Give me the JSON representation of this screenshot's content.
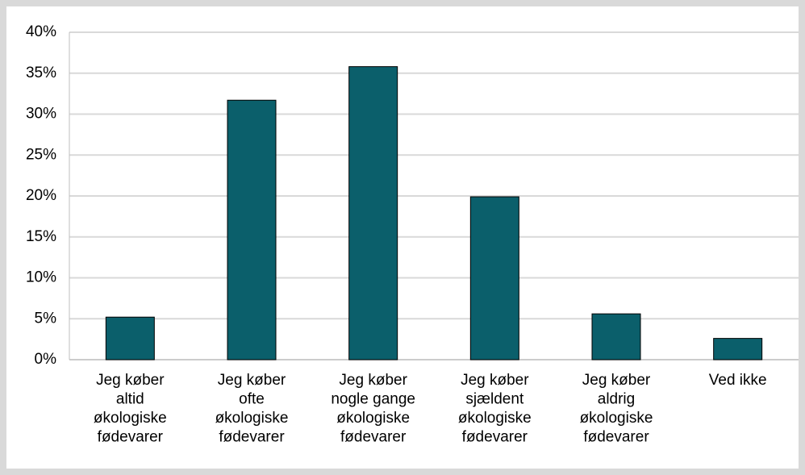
{
  "chart_data": {
    "type": "bar",
    "categories": [
      [
        "Jeg køber",
        "altid",
        "økologiske",
        "fødevarer"
      ],
      [
        "Jeg køber",
        "ofte",
        "økologiske",
        "fødevarer"
      ],
      [
        "Jeg køber",
        "nogle gange",
        "økologiske",
        "fødevarer"
      ],
      [
        "Jeg køber",
        "sjældent",
        "økologiske",
        "fødevarer"
      ],
      [
        "Jeg køber",
        "aldrig",
        "økologiske",
        "fødevarer"
      ],
      [
        "Ved ikke"
      ]
    ],
    "values": [
      5.2,
      31.7,
      35.8,
      19.9,
      5.6,
      2.6
    ],
    "color": "#0b5f6b",
    "ylim": [
      0,
      40
    ],
    "yticks": [
      {
        "value": 0,
        "label": "0%"
      },
      {
        "value": 5,
        "label": "5%"
      },
      {
        "value": 10,
        "label": "10%"
      },
      {
        "value": 15,
        "label": "15%"
      },
      {
        "value": 20,
        "label": "20%"
      },
      {
        "value": 25,
        "label": "25%"
      },
      {
        "value": 30,
        "label": "30%"
      },
      {
        "value": 35,
        "label": "35%"
      },
      {
        "value": 40,
        "label": "40%"
      }
    ],
    "grid": true
  }
}
